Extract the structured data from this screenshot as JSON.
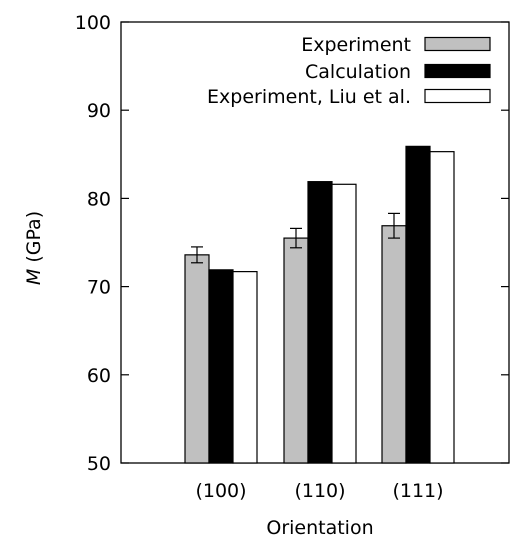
{
  "chart_data": {
    "type": "bar",
    "categories": [
      "(100)",
      "(110)",
      "(111)"
    ],
    "series": [
      {
        "name": "Experiment",
        "values": [
          73.6,
          75.5,
          76.9
        ],
        "errors": [
          0.9,
          1.1,
          1.4
        ],
        "color": "#c0c0c0"
      },
      {
        "name": "Calculation",
        "values": [
          71.9,
          81.9,
          85.9
        ],
        "color": "#000000"
      },
      {
        "name": "Experiment, Liu et al.",
        "values": [
          71.7,
          81.6,
          85.3
        ],
        "color": "#ffffff"
      }
    ],
    "xlabel": "Orientation",
    "ylabel_italic": "M",
    "ylabel_rest": " (GPa)",
    "ylim": [
      50,
      100
    ],
    "yticks": [
      50,
      60,
      70,
      80,
      90,
      100
    ],
    "grid": false,
    "legend_position": "top-right"
  }
}
